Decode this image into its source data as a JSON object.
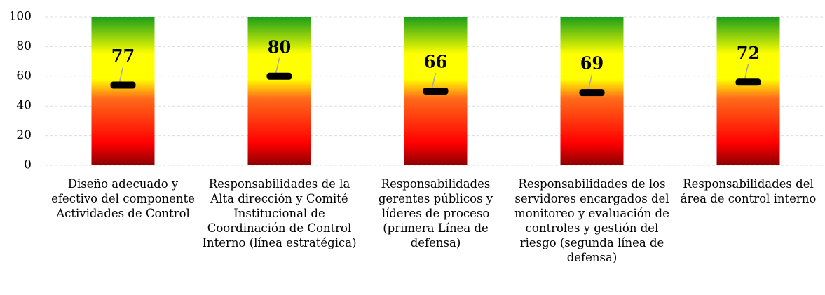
{
  "chart_data": {
    "type": "gauge-bar",
    "categories": [
      "Diseño adecuado y efectivo del componente Actividades de Control",
      "Responsabilidades de la Alta dirección y Comité Institucional de Coordinación de Control Interno (línea estratégica)",
      "Responsabilidades gerentes públicos y líderes de proceso (primera Línea de defensa)",
      "Responsabilidades de los servidores encargados del monitoreo y evaluación de controles y gestión del riesgo (segunda línea de defensa)",
      "Responsabilidades del área de control interno"
    ],
    "values": [
      54,
      60,
      50,
      49,
      56
    ],
    "scores": [
      77,
      80,
      66,
      69,
      72
    ],
    "marker_color": "#000000",
    "gradient": [
      "#8b0000",
      "#ff0000",
      "#ff6a1a",
      "#ffff00",
      "#ffff00",
      "#1a9e1a"
    ],
    "ylim": [
      0,
      100
    ],
    "yticks": [
      0,
      20,
      40,
      60,
      80,
      100
    ],
    "grid": true
  }
}
